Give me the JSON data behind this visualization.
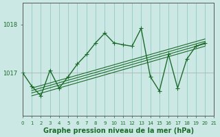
{
  "background_color": "#cce8e4",
  "plot_bg_color": "#cce8e4",
  "grid_color": "#88c4bc",
  "line_color": "#1a6b2a",
  "title": "Graphe pression niveau de la mer (hPa)",
  "xlim": [
    0,
    21
  ],
  "ylim": [
    1016.1,
    1018.45
  ],
  "yticks": [
    1017,
    1018
  ],
  "xticks": [
    0,
    1,
    2,
    3,
    4,
    5,
    6,
    7,
    8,
    9,
    10,
    11,
    12,
    13,
    14,
    15,
    16,
    17,
    18,
    19,
    20,
    21
  ],
  "main_x": [
    0,
    1,
    2,
    3,
    4,
    5,
    6,
    7,
    8,
    9,
    10,
    11,
    12,
    13,
    14,
    15,
    16,
    17,
    18,
    19,
    20
  ],
  "main_y": [
    1017.0,
    1016.72,
    1016.52,
    1017.05,
    1016.68,
    1016.92,
    1017.18,
    1017.38,
    1017.62,
    1017.82,
    1017.62,
    1017.58,
    1017.55,
    1017.92,
    1016.92,
    1016.62,
    1017.38,
    1016.68,
    1017.28,
    1017.55,
    1017.62
  ],
  "trend_lines": [
    {
      "x": [
        1,
        20
      ],
      "y": [
        1016.52,
        1017.55
      ]
    },
    {
      "x": [
        1,
        20
      ],
      "y": [
        1016.58,
        1017.6
      ]
    },
    {
      "x": [
        1,
        20
      ],
      "y": [
        1016.63,
        1017.65
      ]
    },
    {
      "x": [
        1,
        20
      ],
      "y": [
        1016.68,
        1017.7
      ]
    }
  ],
  "fontsize_title": 7,
  "fontsize_tick": 6
}
